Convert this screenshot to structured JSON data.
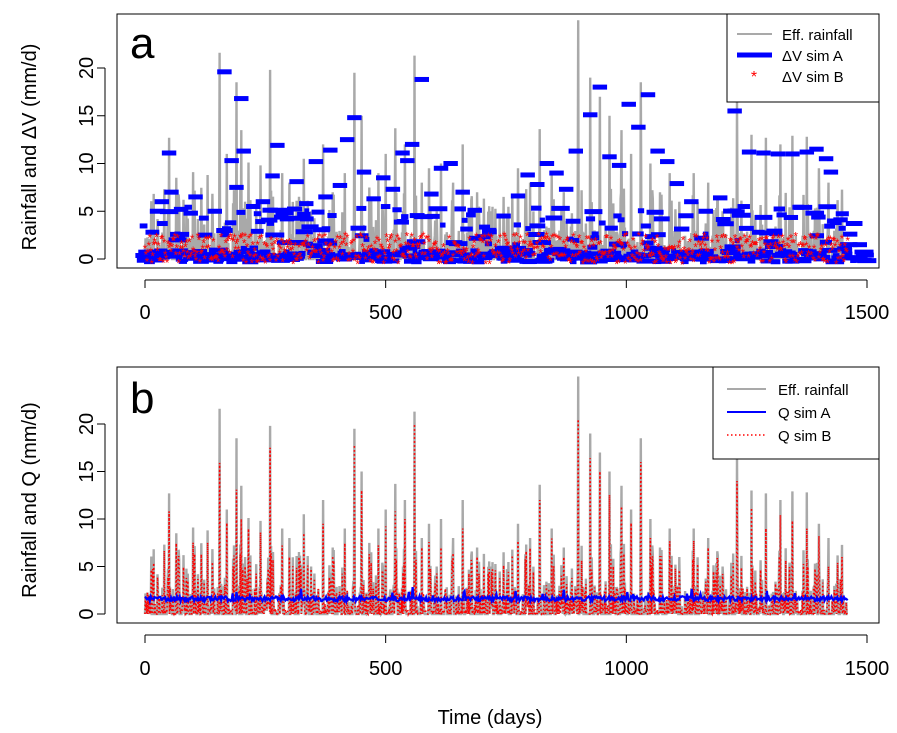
{
  "chart_data": [
    {
      "type": "line",
      "panel_label": "a",
      "ylabel": "Rainfall and  ΔV (mm/d)",
      "xlabel": "",
      "xlim": [
        0,
        1460
      ],
      "ylim": [
        -1,
        25
      ],
      "xticks": [
        "0",
        "500",
        "1000",
        "1500"
      ],
      "yticks": [
        "0",
        "5",
        "10",
        "15",
        "20"
      ],
      "legend": {
        "placement": "top-right",
        "entries": [
          "Eff. rainfall",
          "ΔV sim A",
          "ΔV sim B"
        ]
      },
      "series": [
        {
          "name": "Eff. rainfall",
          "style": "line",
          "color": "#a9a9a9",
          "peaks": [
            [
              40,
              7.3
            ],
            [
              50,
              12.7
            ],
            [
              65,
              8.5
            ],
            [
              80,
              6.2
            ],
            [
              100,
              9.1
            ],
            [
              130,
              8.8
            ],
            [
              155,
              21.6
            ],
            [
              170,
              11.0
            ],
            [
              190,
              18.5
            ],
            [
              200,
              13.5
            ],
            [
              215,
              10.1
            ],
            [
              240,
              9.8
            ],
            [
              260,
              19.8
            ],
            [
              285,
              9.0
            ],
            [
              300,
              8.0
            ],
            [
              330,
              10.5
            ],
            [
              345,
              5.0
            ],
            [
              370,
              12.0
            ],
            [
              390,
              7.0
            ],
            [
              415,
              9.0
            ],
            [
              435,
              19.5
            ],
            [
              450,
              15.0
            ],
            [
              470,
              6.5
            ],
            [
              485,
              9.0
            ],
            [
              500,
              11.0
            ],
            [
              520,
              13.7
            ],
            [
              540,
              12.0
            ],
            [
              560,
              21.3
            ],
            [
              575,
              8.0
            ],
            [
              590,
              9.5
            ],
            [
              615,
              10.0
            ],
            [
              640,
              8.0
            ],
            [
              660,
              12.0
            ],
            [
              690,
              7.0
            ],
            [
              720,
              5.0
            ],
            [
              745,
              6.5
            ],
            [
              775,
              9.5
            ],
            [
              800,
              8.0
            ],
            [
              820,
              13.6
            ],
            [
              845,
              9.0
            ],
            [
              870,
              7.0
            ],
            [
              900,
              25.0
            ],
            [
              925,
              19.0
            ],
            [
              945,
              17.0
            ],
            [
              965,
              15.0
            ],
            [
              990,
              13.5
            ],
            [
              1010,
              11.0
            ],
            [
              1030,
              18.5
            ],
            [
              1050,
              10.0
            ],
            [
              1070,
              7.0
            ],
            [
              1090,
              9.0
            ],
            [
              1110,
              6.0
            ],
            [
              1140,
              9.0
            ],
            [
              1170,
              8.0
            ],
            [
              1200,
              5.0
            ],
            [
              1230,
              16.5
            ],
            [
              1260,
              13.0
            ],
            [
              1290,
              12.7
            ],
            [
              1320,
              12.0
            ],
            [
              1345,
              12.9
            ],
            [
              1375,
              12.8
            ],
            [
              1400,
              9.5
            ],
            [
              1420,
              8.0
            ],
            [
              1445,
              3.7
            ]
          ]
        },
        {
          "name": "ΔV sim A",
          "style": "thick-segments",
          "color": "#0000ff",
          "segments": [
            [
              0,
              0.2
            ],
            [
              10,
              0.6
            ],
            [
              20,
              6.0
            ],
            [
              40,
              7.0
            ],
            [
              35,
              11.1
            ],
            [
              60,
              5.2
            ],
            [
              80,
              4.8
            ],
            [
              90,
              6.5
            ],
            [
              110,
              2.5
            ],
            [
              130,
              5.0
            ],
            [
              150,
              19.6
            ],
            [
              165,
              10.3
            ],
            [
              175,
              7.5
            ],
            [
              185,
              16.8
            ],
            [
              190,
              11.3
            ],
            [
              210,
              5.5
            ],
            [
              230,
              6.0
            ],
            [
              250,
              8.7
            ],
            [
              260,
              11.9
            ],
            [
              280,
              4.2
            ],
            [
              300,
              8.1
            ],
            [
              320,
              5.8
            ],
            [
              340,
              10.2
            ],
            [
              360,
              6.5
            ],
            [
              370,
              11.4
            ],
            [
              390,
              7.7
            ],
            [
              405,
              12.5
            ],
            [
              420,
              14.8
            ],
            [
              440,
              9.1
            ],
            [
              460,
              6.3
            ],
            [
              480,
              8.5
            ],
            [
              500,
              7.3
            ],
            [
              520,
              11.1
            ],
            [
              530,
              10.3
            ],
            [
              540,
              12.0
            ],
            [
              560,
              18.8
            ],
            [
              580,
              6.8
            ],
            [
              600,
              9.5
            ],
            [
              620,
              10.0
            ],
            [
              645,
              7.0
            ],
            [
              670,
              5.1
            ],
            [
              700,
              3.0
            ],
            [
              730,
              4.5
            ],
            [
              760,
              6.6
            ],
            [
              780,
              8.8
            ],
            [
              800,
              7.8
            ],
            [
              820,
              10.0
            ],
            [
              840,
              9.0
            ],
            [
              860,
              7.3
            ],
            [
              880,
              11.3
            ],
            [
              910,
              15.1
            ],
            [
              930,
              18.0
            ],
            [
              950,
              10.7
            ],
            [
              970,
              9.8
            ],
            [
              990,
              16.2
            ],
            [
              1010,
              13.8
            ],
            [
              1030,
              17.2
            ],
            [
              1050,
              11.3
            ],
            [
              1070,
              10.2
            ],
            [
              1090,
              7.9
            ],
            [
              1120,
              6.0
            ],
            [
              1150,
              5.0
            ],
            [
              1180,
              6.4
            ],
            [
              1210,
              15.5
            ],
            [
              1240,
              11.2
            ],
            [
              1270,
              11.1
            ],
            [
              1300,
              11.0
            ],
            [
              1330,
              11.0
            ],
            [
              1360,
              11.2
            ],
            [
              1380,
              11.5
            ],
            [
              1400,
              10.5
            ],
            [
              1410,
              9.1
            ],
            [
              1430,
              4.1
            ],
            [
              1450,
              2.6
            ],
            [
              1470,
              1.5
            ]
          ]
        },
        {
          "name": "ΔV sim B",
          "style": "points",
          "marker": "*",
          "color": "#ff0000",
          "range_days": [
            0,
            1460
          ],
          "typical_range": [
            -0.5,
            2.5
          ]
        }
      ]
    },
    {
      "type": "line",
      "panel_label": "b",
      "ylabel": "Rainfall and  Q (mm/d)",
      "xlabel": "Time (days)",
      "xlim": [
        0,
        1460
      ],
      "ylim": [
        -1,
        25
      ],
      "xticks": [
        "0",
        "500",
        "1000",
        "1500"
      ],
      "yticks": [
        "0",
        "5",
        "10",
        "15",
        "20"
      ],
      "legend": {
        "placement": "top-right",
        "entries": [
          "Eff. rainfall",
          "Q sim A",
          "Q sim B"
        ]
      },
      "series": [
        {
          "name": "Eff. rainfall",
          "style": "line",
          "color": "#a9a9a9",
          "peaks": [
            [
              40,
              7.3
            ],
            [
              50,
              12.7
            ],
            [
              65,
              8.5
            ],
            [
              80,
              6.2
            ],
            [
              100,
              9.1
            ],
            [
              130,
              8.8
            ],
            [
              155,
              21.6
            ],
            [
              170,
              11.0
            ],
            [
              190,
              18.5
            ],
            [
              200,
              13.5
            ],
            [
              215,
              10.1
            ],
            [
              240,
              9.8
            ],
            [
              260,
              19.8
            ],
            [
              285,
              9.0
            ],
            [
              300,
              8.0
            ],
            [
              330,
              10.5
            ],
            [
              345,
              5.0
            ],
            [
              370,
              12.0
            ],
            [
              390,
              7.0
            ],
            [
              415,
              9.0
            ],
            [
              435,
              19.5
            ],
            [
              450,
              15.0
            ],
            [
              470,
              6.5
            ],
            [
              485,
              9.0
            ],
            [
              500,
              11.0
            ],
            [
              520,
              13.7
            ],
            [
              540,
              12.0
            ],
            [
              560,
              21.3
            ],
            [
              575,
              8.0
            ],
            [
              590,
              9.5
            ],
            [
              615,
              10.0
            ],
            [
              640,
              8.0
            ],
            [
              660,
              12.0
            ],
            [
              690,
              7.0
            ],
            [
              720,
              5.0
            ],
            [
              745,
              6.5
            ],
            [
              775,
              9.5
            ],
            [
              800,
              8.0
            ],
            [
              820,
              13.6
            ],
            [
              845,
              9.0
            ],
            [
              870,
              7.0
            ],
            [
              900,
              25.0
            ],
            [
              925,
              19.0
            ],
            [
              945,
              17.0
            ],
            [
              965,
              15.0
            ],
            [
              990,
              13.5
            ],
            [
              1010,
              11.0
            ],
            [
              1030,
              18.5
            ],
            [
              1050,
              10.0
            ],
            [
              1070,
              7.0
            ],
            [
              1090,
              9.0
            ],
            [
              1110,
              6.0
            ],
            [
              1140,
              9.0
            ],
            [
              1170,
              8.0
            ],
            [
              1200,
              5.0
            ],
            [
              1230,
              16.5
            ],
            [
              1260,
              13.0
            ],
            [
              1290,
              12.7
            ],
            [
              1320,
              12.0
            ],
            [
              1345,
              12.9
            ],
            [
              1375,
              12.8
            ],
            [
              1400,
              9.5
            ],
            [
              1420,
              8.0
            ],
            [
              1445,
              3.7
            ]
          ]
        },
        {
          "name": "Q sim A",
          "style": "line",
          "color": "#0000ff",
          "baseline": 1.6
        },
        {
          "name": "Q sim B",
          "style": "dotted",
          "color": "#ff0000",
          "peaks": [
            [
              50,
              10.8
            ],
            [
              155,
              15.9
            ],
            [
              190,
              13.1
            ],
            [
              200,
              10.0
            ],
            [
              260,
              17.5
            ],
            [
              300,
              6.0
            ],
            [
              370,
              9.5
            ],
            [
              435,
              17.8
            ],
            [
              450,
              13.0
            ],
            [
              520,
              10.8
            ],
            [
              540,
              10.0
            ],
            [
              560,
              20.0
            ],
            [
              615,
              7.0
            ],
            [
              660,
              9.0
            ],
            [
              820,
              12.0
            ],
            [
              900,
              20.5
            ],
            [
              925,
              16.4
            ],
            [
              945,
              15.0
            ],
            [
              1030,
              16.0
            ],
            [
              1050,
              8.0
            ],
            [
              1230,
              14.0
            ],
            [
              1290,
              9.0
            ],
            [
              1345,
              9.8
            ],
            [
              1375,
              9.0
            ],
            [
              1420,
              5.0
            ]
          ]
        }
      ]
    }
  ]
}
